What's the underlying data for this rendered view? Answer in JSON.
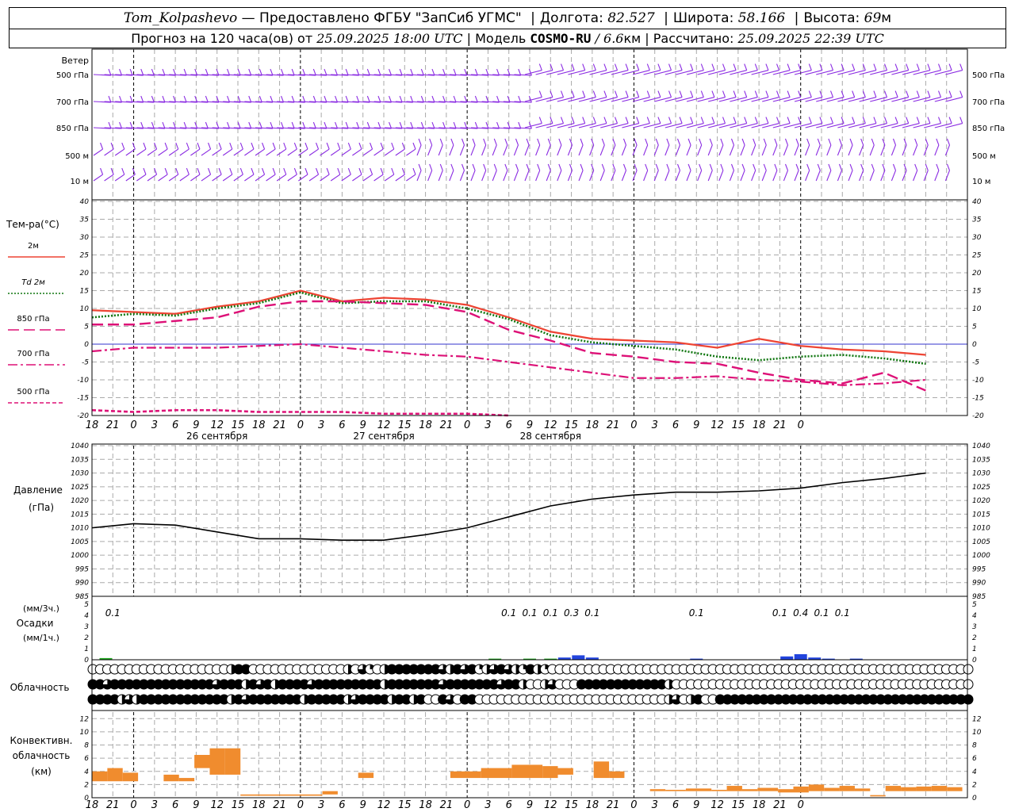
{
  "header": {
    "station": "Tom_Kolpashevo",
    "provider": "— Предоставлено ФГБУ \"ЗапСиб УГМС\"",
    "lon_label": "Долгота:",
    "lon_value": "82.527",
    "lat_label": "Широта:",
    "lat_value": "58.166",
    "alt_label": "Высота:",
    "alt_value": "69",
    "alt_unit": "м",
    "forecast_label": "Прогноз на 120 часа(ов) от",
    "forecast_time": "25.09.2025 18:00 UTC",
    "model_label": "| Модель",
    "model_name": "COSMO-RU",
    "model_res": "/ 6.6",
    "model_res_unit": "км",
    "calc_label": "| Рассчитано:",
    "calc_time": "25.09.2025 22:39 UTC"
  },
  "colors": {
    "wind": "#8a2be2",
    "t2m": "#ee4433",
    "td2m": "#117711",
    "t850": "#dd1177",
    "t700": "#dd1177",
    "t500": "#dd1177",
    "zero_line": "#3333cc",
    "pressure": "#000000",
    "precip_green": "#22aa22",
    "precip_blue": "#2244dd",
    "convective": "#f08c2e"
  },
  "x_axis": {
    "hour_labels": [
      "18",
      "21",
      "0",
      "3",
      "6",
      "9",
      "12",
      "15",
      "18",
      "21",
      "0",
      "3",
      "6",
      "9",
      "12",
      "15",
      "18",
      "21",
      "0",
      "3",
      "6",
      "9",
      "12",
      "15",
      "18",
      "21",
      "0",
      "3",
      "6",
      "9",
      "12",
      "15",
      "18",
      "21",
      "0"
    ],
    "day_labels": [
      "26 сентября",
      "27 сентября",
      "28 сентября"
    ]
  },
  "wind_panel": {
    "title": "Ветер",
    "levels": [
      "500 гПа",
      "700 гПа",
      "850 гПа",
      "500 м",
      "10 м"
    ]
  },
  "temp_panel": {
    "title": "Тем-ра(°С)",
    "legend": [
      {
        "label": "2м",
        "style": "solid",
        "color": "t2m"
      },
      {
        "label": "Td 2м",
        "style": "dotted",
        "color": "td2m"
      },
      {
        "label": "850 гПа",
        "style": "longdash",
        "color": "t850"
      },
      {
        "label": "700 гПа",
        "style": "dashdot",
        "color": "t700"
      },
      {
        "label": "500 гПа",
        "style": "dash",
        "color": "t500"
      }
    ]
  },
  "pressure_panel": {
    "title": "Давление",
    "unit": "(гПа)"
  },
  "precip_panel": {
    "unit_top": "(мм/3ч.)",
    "title": "Осадки",
    "unit_bottom": "(мм/1ч.)",
    "annotations": [
      {
        "hour": 3,
        "text": "0.1"
      },
      {
        "hour": 60,
        "text": "0.1"
      },
      {
        "hour": 63,
        "text": "0.1"
      },
      {
        "hour": 66,
        "text": "0.1"
      },
      {
        "hour": 69,
        "text": "0.3"
      },
      {
        "hour": 72,
        "text": "0.1"
      },
      {
        "hour": 87,
        "text": "0.1"
      },
      {
        "hour": 99,
        "text": "0.1"
      },
      {
        "hour": 102,
        "text": "0.4"
      },
      {
        "hour": 105,
        "text": "0.1"
      },
      {
        "hour": 108,
        "text": "0.1"
      }
    ]
  },
  "cloud_panel": {
    "title": "Облачность"
  },
  "conv_panel": {
    "title_1": "Конвективн.",
    "title_2": "облачность",
    "unit": "(км)"
  },
  "chart_data": [
    {
      "type": "line",
      "name": "temperature",
      "x_unit": "hours since 25.09.2025 18:00 UTC",
      "ylim": [
        -20,
        40
      ],
      "yticks": [
        -20,
        -15,
        -10,
        -5,
        0,
        5,
        10,
        15,
        20,
        25,
        30,
        35,
        40
      ],
      "series": [
        {
          "name": "2м",
          "x": [
            0,
            6,
            12,
            18,
            24,
            30,
            36,
            42,
            48,
            54,
            60,
            66,
            72,
            78,
            84,
            90,
            96,
            102,
            108,
            114,
            120
          ],
          "y": [
            9.5,
            9,
            8.5,
            10.5,
            12,
            15,
            12,
            13,
            12.5,
            11,
            7.5,
            3.5,
            1.5,
            1,
            0.5,
            -1,
            1.5,
            -0.5,
            -1.5,
            -2,
            -3
          ]
        },
        {
          "name": "Td 2м",
          "x": [
            0,
            6,
            12,
            18,
            24,
            30,
            36,
            42,
            48,
            54,
            60,
            66,
            72,
            78,
            84,
            90,
            96,
            102,
            108,
            114,
            120
          ],
          "y": [
            7.5,
            8.5,
            8,
            10,
            11.5,
            14.5,
            11.5,
            12,
            12,
            10,
            7,
            2.5,
            0.5,
            -0.5,
            -1.5,
            -3.5,
            -4.5,
            -3.5,
            -3,
            -4,
            -5.5
          ]
        },
        {
          "name": "850 гПа",
          "x": [
            0,
            6,
            12,
            18,
            24,
            30,
            36,
            42,
            48,
            54,
            60,
            66,
            72,
            78,
            84,
            90,
            96,
            102,
            108,
            114,
            120
          ],
          "y": [
            5.5,
            5.5,
            6.5,
            7.5,
            10.5,
            12,
            12,
            11.5,
            11,
            9,
            4,
            1,
            -2.5,
            -3.5,
            -5,
            -5.5,
            -8,
            -10,
            -11,
            -8,
            -13
          ]
        },
        {
          "name": "700 гПа",
          "x": [
            0,
            6,
            12,
            18,
            24,
            30,
            36,
            42,
            48,
            54,
            60,
            66,
            72,
            78,
            84,
            90,
            96,
            102,
            108,
            114,
            120
          ],
          "y": [
            -2,
            -1,
            -1,
            -1,
            -0.5,
            0,
            -1,
            -2,
            -3,
            -3.5,
            -5,
            -6.5,
            -8,
            -9.5,
            -9.5,
            -9,
            -10,
            -10.5,
            -11.5,
            -11,
            -10
          ]
        },
        {
          "name": "500 гПа",
          "x": [
            0,
            6,
            12,
            18,
            24,
            30,
            36,
            42,
            48,
            54,
            60
          ],
          "y": [
            -18.5,
            -19,
            -18.5,
            -18.5,
            -19,
            -19,
            -19,
            -19.5,
            -19.5,
            -19.5,
            -20
          ]
        }
      ]
    },
    {
      "type": "line",
      "name": "pressure",
      "x_unit": "hours since 25.09.2025 18:00 UTC",
      "ylim": [
        985,
        1040
      ],
      "yticks": [
        985,
        990,
        995,
        1000,
        1005,
        1010,
        1015,
        1020,
        1025,
        1030,
        1035,
        1040
      ],
      "series": [
        {
          "name": "",
          "x": [
            0,
            6,
            12,
            18,
            24,
            30,
            36,
            42,
            48,
            54,
            60,
            66,
            72,
            78,
            84,
            90,
            96,
            102,
            108,
            114,
            120
          ],
          "y": [
            1010,
            1011.5,
            1011,
            1008.5,
            1006,
            1006,
            1005.5,
            1005.5,
            1007.5,
            1010,
            1014,
            1018,
            1020.5,
            1022,
            1023,
            1023,
            1023.5,
            1024.5,
            1026.5,
            1028,
            1030
          ]
        }
      ]
    },
    {
      "type": "bar",
      "name": "precipitation",
      "ylim": [
        0,
        5
      ],
      "yticks": [
        0,
        1,
        2,
        3,
        4,
        5
      ],
      "bars": [
        {
          "hour": 2,
          "value": 0.15,
          "color": "precip_green"
        },
        {
          "hour": 58,
          "value": 0.1,
          "color": "precip_green"
        },
        {
          "hour": 63,
          "value": 0.1,
          "color": "precip_green"
        },
        {
          "hour": 66,
          "value": 0.1,
          "color": "precip_green"
        },
        {
          "hour": 68,
          "value": 0.2,
          "color": "precip_blue"
        },
        {
          "hour": 70,
          "value": 0.4,
          "color": "precip_blue"
        },
        {
          "hour": 72,
          "value": 0.2,
          "color": "precip_blue"
        },
        {
          "hour": 87,
          "value": 0.1,
          "color": "precip_blue"
        },
        {
          "hour": 100,
          "value": 0.3,
          "color": "precip_blue"
        },
        {
          "hour": 102,
          "value": 0.5,
          "color": "precip_blue"
        },
        {
          "hour": 104,
          "value": 0.2,
          "color": "precip_blue"
        },
        {
          "hour": 106,
          "value": 0.1,
          "color": "precip_blue"
        },
        {
          "hour": 110,
          "value": 0.1,
          "color": "precip_blue"
        }
      ]
    },
    {
      "type": "bar",
      "name": "cloudiness",
      "rows": 3,
      "row_fractions": [
        [
          0,
          0,
          0,
          0,
          0,
          0,
          0,
          0,
          0,
          0,
          0,
          0,
          0,
          0,
          0,
          0,
          0,
          0,
          0,
          0.5,
          1,
          1,
          0,
          0,
          0,
          0,
          0,
          0,
          0,
          0,
          0,
          0,
          0,
          0,
          0,
          0.5,
          0,
          0.75,
          0.25,
          0,
          0.5,
          1,
          1,
          1,
          1,
          1,
          1,
          1,
          0.75,
          0.5,
          1,
          0.75,
          1,
          0.25,
          0.5,
          0.75,
          1,
          0.75,
          0.5,
          0.25,
          1,
          0.5,
          0.25,
          0,
          0,
          0,
          0,
          0,
          0,
          0,
          0,
          0,
          0,
          0,
          0,
          0,
          0,
          0,
          0,
          0,
          0,
          0,
          0,
          0,
          0,
          0,
          0,
          0,
          0,
          0,
          0,
          0,
          0,
          0,
          0,
          0,
          0,
          0,
          0,
          0,
          0,
          0,
          0,
          0,
          0,
          0,
          0,
          0,
          0,
          0,
          0,
          0,
          0,
          0,
          0,
          0,
          0,
          0,
          0,
          0,
          0,
          0
        ],
        [
          1,
          1,
          0.75,
          1,
          1,
          1,
          1,
          1,
          1,
          1,
          1,
          1,
          1,
          1,
          1,
          1,
          1,
          0.75,
          1,
          1,
          1,
          0.5,
          1,
          0.75,
          1,
          0.5,
          1,
          1,
          1,
          1,
          0.75,
          1,
          1,
          1,
          1,
          1,
          1,
          1,
          1,
          1,
          0.5,
          1,
          1,
          1,
          1,
          1,
          1,
          1,
          0.75,
          1,
          1,
          1,
          1,
          1,
          1,
          1,
          0.75,
          1,
          1,
          0.5,
          0,
          0,
          0.5,
          0.75,
          0,
          0,
          0,
          1,
          1,
          1,
          1,
          1,
          1,
          1,
          1,
          1,
          1,
          1,
          1,
          0.5,
          0,
          0,
          0,
          0,
          0,
          0,
          0,
          0,
          0,
          0,
          0,
          0,
          0,
          0,
          0,
          0,
          0,
          0,
          0,
          0,
          0,
          0,
          0,
          0,
          0,
          0,
          0,
          0,
          0,
          0,
          0,
          0,
          0,
          0,
          0,
          0,
          0,
          0,
          0,
          0,
          0,
          0,
          0,
          0,
          0
        ],
        [
          1,
          1,
          1,
          1,
          0.5,
          0.75,
          0.5,
          1,
          1,
          1,
          1,
          1,
          1,
          1,
          1,
          1,
          1,
          1,
          1,
          0.5,
          1,
          0.75,
          1,
          1,
          1,
          1,
          1,
          1,
          1,
          0.5,
          1,
          1,
          1,
          1,
          1,
          0.5,
          0.75,
          1,
          1,
          1,
          1,
          0.5,
          1,
          1,
          0.5,
          1,
          0,
          0,
          1,
          0.75,
          0,
          1,
          1,
          0,
          0,
          0,
          0,
          0,
          0,
          0,
          0,
          0,
          0,
          0,
          0,
          0,
          0,
          0,
          0,
          0,
          0,
          0,
          0,
          0,
          0,
          0,
          0,
          0,
          0,
          0.5,
          0.75,
          0,
          0.5,
          1,
          0,
          0,
          1,
          1,
          1,
          1,
          1,
          1,
          1,
          1,
          1,
          1,
          1,
          1,
          1,
          1,
          1,
          1,
          1,
          1,
          1,
          1,
          1,
          1,
          1,
          1,
          1,
          1,
          1,
          1,
          1,
          1,
          1,
          1,
          1,
          1,
          1
        ]
      ]
    },
    {
      "type": "bar",
      "name": "convective_cloud",
      "ylim": [
        0,
        13
      ],
      "yticks": [
        0,
        2,
        4,
        6,
        8,
        10,
        12
      ],
      "layers": [
        {
          "start": 0,
          "end": 3,
          "base": 2.5,
          "top": 4
        },
        {
          "start": 3,
          "end": 6,
          "base": 2.5,
          "top": 4.5
        },
        {
          "start": 6,
          "end": 9,
          "base": 2.5,
          "top": 3.8
        },
        {
          "start": 14,
          "end": 17,
          "base": 2.5,
          "top": 3.5
        },
        {
          "start": 17,
          "end": 20,
          "base": 2.5,
          "top": 3
        },
        {
          "start": 20,
          "end": 23,
          "base": 4.5,
          "top": 6.5
        },
        {
          "start": 23,
          "end": 26,
          "base": 3.5,
          "top": 7.5
        },
        {
          "start": 26,
          "end": 29,
          "base": 3.5,
          "top": 7.5
        },
        {
          "start": 29,
          "end": 45,
          "base": 0.3,
          "top": 0.5
        },
        {
          "start": 45,
          "end": 48,
          "base": 0.5,
          "top": 1
        },
        {
          "start": 52,
          "end": 55,
          "base": 3,
          "top": 3.8
        },
        {
          "start": 70,
          "end": 76,
          "base": 3,
          "top": 4
        },
        {
          "start": 76,
          "end": 82,
          "base": 3,
          "top": 4.5
        },
        {
          "start": 82,
          "end": 88,
          "base": 3,
          "top": 5
        },
        {
          "start": 88,
          "end": 91,
          "base": 3,
          "top": 4.8
        },
        {
          "start": 91,
          "end": 94,
          "base": 3.5,
          "top": 4.5
        },
        {
          "start": 98,
          "end": 101,
          "base": 3,
          "top": 5.5
        },
        {
          "start": 101,
          "end": 104,
          "base": 3,
          "top": 4
        },
        {
          "start": 109,
          "end": 112,
          "base": 1,
          "top": 1.3
        },
        {
          "start": 112,
          "end": 116,
          "base": 1,
          "top": 1.2
        },
        {
          "start": 116,
          "end": 121,
          "base": 1,
          "top": 1.4
        },
        {
          "start": 121,
          "end": 124,
          "base": 1,
          "top": 1.2
        },
        {
          "start": 124,
          "end": 127,
          "base": 1,
          "top": 1.8
        },
        {
          "start": 127,
          "end": 130,
          "base": 1,
          "top": 1.3
        },
        {
          "start": 130,
          "end": 134,
          "base": 1,
          "top": 1.5
        },
        {
          "start": 134,
          "end": 137,
          "base": 0.8,
          "top": 1.3
        },
        {
          "start": 137,
          "end": 140,
          "base": 0.8,
          "top": 1.7
        },
        {
          "start": 140,
          "end": 143,
          "base": 1,
          "top": 2
        },
        {
          "start": 143,
          "end": 146,
          "base": 1,
          "top": 1.5
        },
        {
          "start": 146,
          "end": 149,
          "base": 1,
          "top": 1.8
        },
        {
          "start": 149,
          "end": 152,
          "base": 1,
          "top": 1.4
        },
        {
          "start": 152,
          "end": 155,
          "base": 0.2,
          "top": 0.4
        },
        {
          "start": 155,
          "end": 158,
          "base": 1,
          "top": 1.8
        },
        {
          "start": 158,
          "end": 161,
          "base": 1,
          "top": 1.6
        },
        {
          "start": 161,
          "end": 164,
          "base": 1,
          "top": 1.7
        },
        {
          "start": 164,
          "end": 167,
          "base": 1,
          "top": 1.8
        },
        {
          "start": 167,
          "end": 170,
          "base": 1,
          "top": 1.6
        }
      ]
    }
  ]
}
